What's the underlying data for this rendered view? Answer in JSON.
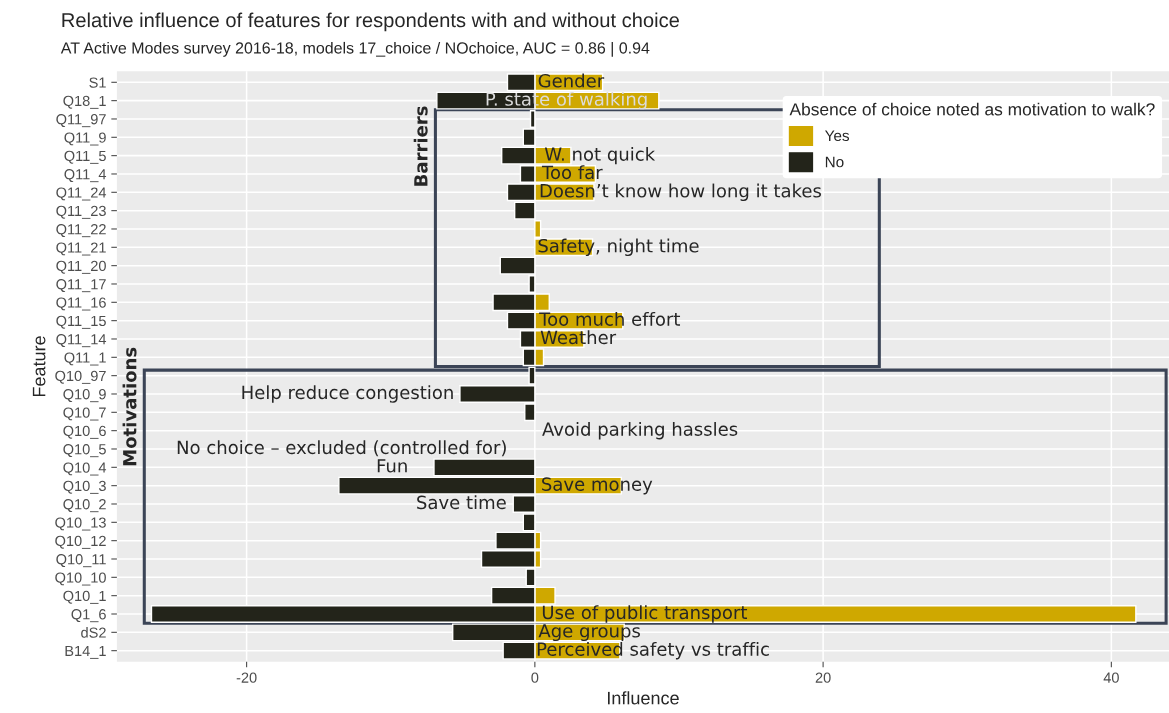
{
  "chart_data": {
    "type": "bar",
    "orientation": "horizontal",
    "stacked": true,
    "title": "Relative influence of features for respondents with and without choice",
    "subtitle": "AT Active Modes survey 2016-18, models 17_choice / NOchoice, AUC = 0.86 | 0.94",
    "xlabel": "Influence",
    "ylabel": "Feature",
    "legend_title": "Absence of choice noted as motivation to walk?",
    "categories": [
      "S1",
      "Q18_1",
      "Q11_97",
      "Q11_9",
      "Q11_5",
      "Q11_4",
      "Q11_24",
      "Q11_23",
      "Q11_22",
      "Q11_21",
      "Q11_20",
      "Q11_17",
      "Q11_16",
      "Q11_15",
      "Q11_14",
      "Q11_1",
      "Q10_97",
      "Q10_9",
      "Q10_7",
      "Q10_6",
      "Q10_5",
      "Q10_4",
      "Q10_3",
      "Q10_2",
      "Q10_13",
      "Q10_12",
      "Q10_11",
      "Q10_10",
      "Q10_1",
      "Q1_6",
      "dS2",
      "B14_1"
    ],
    "series": [
      {
        "name": "Yes",
        "color": "#cfa800",
        "values": [
          4.7,
          8.6,
          null,
          null,
          2.5,
          4.2,
          4.1,
          null,
          0.4,
          4.0,
          null,
          null,
          1.0,
          6.1,
          3.4,
          0.6,
          null,
          null,
          null,
          null,
          null,
          null,
          6.0,
          null,
          null,
          0.4,
          0.4,
          null,
          1.4,
          41.7,
          6.2,
          5.9
        ]
      },
      {
        "name": "No",
        "color": "#23241a",
        "values": [
          -1.9,
          -6.8,
          -0.3,
          -0.8,
          -2.3,
          -1.0,
          -1.9,
          -1.4,
          null,
          null,
          -2.4,
          -0.4,
          -2.9,
          -1.9,
          -1.0,
          -0.8,
          -0.4,
          -5.2,
          -0.7,
          null,
          null,
          -7.0,
          -13.6,
          -1.5,
          -0.8,
          -2.7,
          -3.7,
          -0.6,
          -3.0,
          -26.6,
          -5.7,
          -2.2
        ]
      }
    ],
    "xlim": [
      -29,
      44
    ],
    "xticks": [
      -20,
      0,
      20,
      40
    ],
    "grid": true,
    "legend": "top right",
    "annotations": [
      "Gender",
      "P. state of walking",
      "W. not quick",
      "Too far",
      "Doesn’t know how long it takes",
      "Safety, night time",
      "Too much effort",
      "Weather",
      "Help reduce congestion",
      "Avoid parking hassles",
      "No choice – excluded (controlled for)",
      "Fun",
      "Save money",
      "Save time",
      "Use of public transport",
      "Age groups",
      "Perceived safety vs traffic",
      "Barriers",
      "Motivations"
    ]
  }
}
